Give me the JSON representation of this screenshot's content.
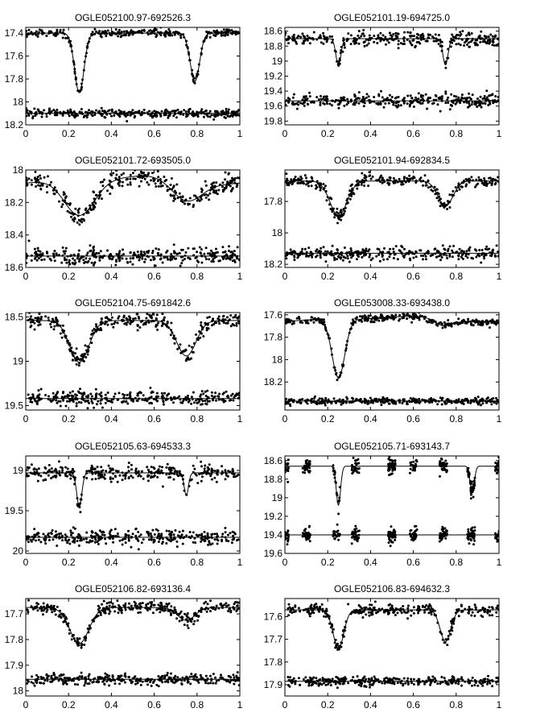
{
  "chart_data": [
    {
      "type": "scatter",
      "title": "OGLE052100.97-692526.3",
      "xlim": [
        0,
        1
      ],
      "ylim": [
        18.2,
        17.35
      ],
      "inverted_y": true,
      "x_ticks": [
        "0",
        "0.2",
        "0.4",
        "0.6",
        "0.8",
        "1"
      ],
      "y_ticks": [
        "17.4",
        "17.6",
        "17.8",
        "18",
        "18.2"
      ],
      "model": {
        "base": 17.4,
        "dips": [
          {
            "center": 0.25,
            "depth": 0.52,
            "width": 0.022
          },
          {
            "center": 0.79,
            "depth": 0.42,
            "width": 0.022
          }
        ],
        "scatter": 0.015
      },
      "residual_level": 18.1,
      "residual_scatter": 0.018
    },
    {
      "type": "scatter",
      "title": "OGLE052101.19-694725.0",
      "xlim": [
        0,
        1
      ],
      "ylim": [
        19.85,
        18.55
      ],
      "inverted_y": true,
      "x_ticks": [
        "0",
        "0.2",
        "0.4",
        "0.6",
        "0.8",
        "1"
      ],
      "y_ticks": [
        "18.6",
        "18.8",
        "19",
        "19.2",
        "19.4",
        "19.6",
        "19.8"
      ],
      "model": {
        "base": 18.7,
        "dips": [
          {
            "center": 0.25,
            "depth": 0.35,
            "width": 0.012
          },
          {
            "center": 0.75,
            "depth": 0.35,
            "width": 0.012
          }
        ],
        "scatter": 0.045
      },
      "residual_level": 19.53,
      "residual_scatter": 0.045
    },
    {
      "type": "scatter",
      "title": "OGLE052101.72-693505.0",
      "xlim": [
        0,
        1
      ],
      "ylim": [
        18.6,
        18.0
      ],
      "inverted_y": true,
      "x_ticks": [
        "0",
        "0.2",
        "0.4",
        "0.6",
        "0.8",
        "1"
      ],
      "y_ticks": [
        "18",
        "18.2",
        "18.4",
        "18.6"
      ],
      "model": {
        "base": 18.06,
        "dips": [
          {
            "center": 0.25,
            "depth": 0.22,
            "width": 0.07
          },
          {
            "center": 0.75,
            "depth": 0.13,
            "width": 0.07
          }
        ],
        "scatter": 0.03,
        "bump": -0.04
      },
      "residual_level": 18.53,
      "residual_scatter": 0.025
    },
    {
      "type": "scatter",
      "title": "OGLE052101.94-692834.5",
      "xlim": [
        0,
        1
      ],
      "ylim": [
        18.22,
        17.6
      ],
      "inverted_y": true,
      "x_ticks": [
        "0",
        "0.2",
        "0.4",
        "0.6",
        "0.8",
        "1"
      ],
      "y_ticks": [
        "17.8",
        "18",
        "18.2"
      ],
      "model": {
        "base": 17.67,
        "dips": [
          {
            "center": 0.25,
            "depth": 0.22,
            "width": 0.04
          },
          {
            "center": 0.75,
            "depth": 0.16,
            "width": 0.035
          }
        ],
        "scatter": 0.018
      },
      "residual_level": 18.13,
      "residual_scatter": 0.02
    },
    {
      "type": "scatter",
      "title": "OGLE052104.75-691842.6",
      "xlim": [
        0,
        1
      ],
      "ylim": [
        19.55,
        18.45
      ],
      "inverted_y": true,
      "x_ticks": [
        "0",
        "0.2",
        "0.4",
        "0.6",
        "0.8",
        "1"
      ],
      "y_ticks": [
        "18.5",
        "19",
        "19.5"
      ],
      "model": {
        "base": 18.54,
        "dips": [
          {
            "center": 0.25,
            "depth": 0.47,
            "width": 0.045
          },
          {
            "center": 0.75,
            "depth": 0.4,
            "width": 0.045
          }
        ],
        "scatter": 0.04
      },
      "residual_level": 19.42,
      "residual_scatter": 0.04
    },
    {
      "type": "scatter",
      "title": "OGLE053008.33-693438.0",
      "xlim": [
        0,
        1
      ],
      "ylim": [
        18.45,
        17.58
      ],
      "inverted_y": true,
      "x_ticks": [
        "0",
        "0.2",
        "0.4",
        "0.6",
        "0.8",
        "1"
      ],
      "y_ticks": [
        "17.6",
        "17.8",
        "18",
        "18.2"
      ],
      "model": {
        "base": 17.64,
        "dips": [
          {
            "center": 0.25,
            "depth": 0.52,
            "width": 0.03
          },
          {
            "center": 0.74,
            "depth": 0.06,
            "width": 0.04
          }
        ],
        "scatter": 0.015,
        "bump": -0.04
      },
      "residual_level": 18.37,
      "residual_scatter": 0.015
    },
    {
      "type": "scatter",
      "title": "OGLE052105.63-694533.3",
      "xlim": [
        0,
        1
      ],
      "ylim": [
        20.03,
        18.82
      ],
      "inverted_y": true,
      "x_ticks": [
        "0",
        "0.2",
        "0.4",
        "0.6",
        "0.8",
        "1"
      ],
      "y_ticks": [
        "19",
        "19.5",
        "20"
      ],
      "model": {
        "base": 19.03,
        "dips": [
          {
            "center": 0.25,
            "depth": 0.42,
            "width": 0.012
          },
          {
            "center": 0.75,
            "depth": 0.28,
            "width": 0.01
          }
        ],
        "scatter": 0.045
      },
      "residual_level": 19.83,
      "residual_scatter": 0.045
    },
    {
      "type": "scatter",
      "title": "OGLE052105.71-693143.7",
      "xlim": [
        0,
        1
      ],
      "ylim": [
        19.6,
        18.55
      ],
      "inverted_y": true,
      "x_ticks": [
        "0",
        "0.2",
        "0.4",
        "0.6",
        "0.8",
        "1"
      ],
      "y_ticks": [
        "18.6",
        "18.8",
        "19",
        "19.2",
        "19.4",
        "19.6"
      ],
      "model": {
        "base": 18.66,
        "dips": [
          {
            "center": 0.25,
            "depth": 0.42,
            "width": 0.01
          },
          {
            "center": 0.875,
            "depth": 0.28,
            "width": 0.01
          }
        ],
        "scatter": 0.04
      },
      "residual_level": 19.4,
      "residual_scatter": 0.04,
      "phase_clusters": [
        0.0,
        0.1,
        0.24,
        0.33,
        0.5,
        0.6,
        0.74,
        0.87,
        1.0
      ]
    },
    {
      "type": "scatter",
      "title": "OGLE052106.82-693136.4",
      "xlim": [
        0,
        1
      ],
      "ylim": [
        18.02,
        17.64
      ],
      "inverted_y": true,
      "x_ticks": [
        "0",
        "0.2",
        "0.4",
        "0.6",
        "0.8",
        "1"
      ],
      "y_ticks": [
        "17.7",
        "17.8",
        "17.9",
        "18"
      ],
      "model": {
        "base": 17.675,
        "dips": [
          {
            "center": 0.25,
            "depth": 0.14,
            "width": 0.045
          },
          {
            "center": 0.75,
            "depth": 0.05,
            "width": 0.04
          }
        ],
        "scatter": 0.012
      },
      "residual_level": 17.955,
      "residual_scatter": 0.01
    },
    {
      "type": "scatter",
      "title": "OGLE052106.83-694632.3",
      "xlim": [
        0,
        1
      ],
      "ylim": [
        17.95,
        17.52
      ],
      "inverted_y": true,
      "x_ticks": [
        "0",
        "0.2",
        "0.4",
        "0.6",
        "0.8",
        "1"
      ],
      "y_ticks": [
        "17.6",
        "17.7",
        "17.8",
        "17.9"
      ],
      "model": {
        "base": 17.57,
        "dips": [
          {
            "center": 0.25,
            "depth": 0.17,
            "width": 0.025
          },
          {
            "center": 0.75,
            "depth": 0.14,
            "width": 0.025
          }
        ],
        "scatter": 0.012
      },
      "residual_level": 17.885,
      "residual_scatter": 0.01
    }
  ]
}
